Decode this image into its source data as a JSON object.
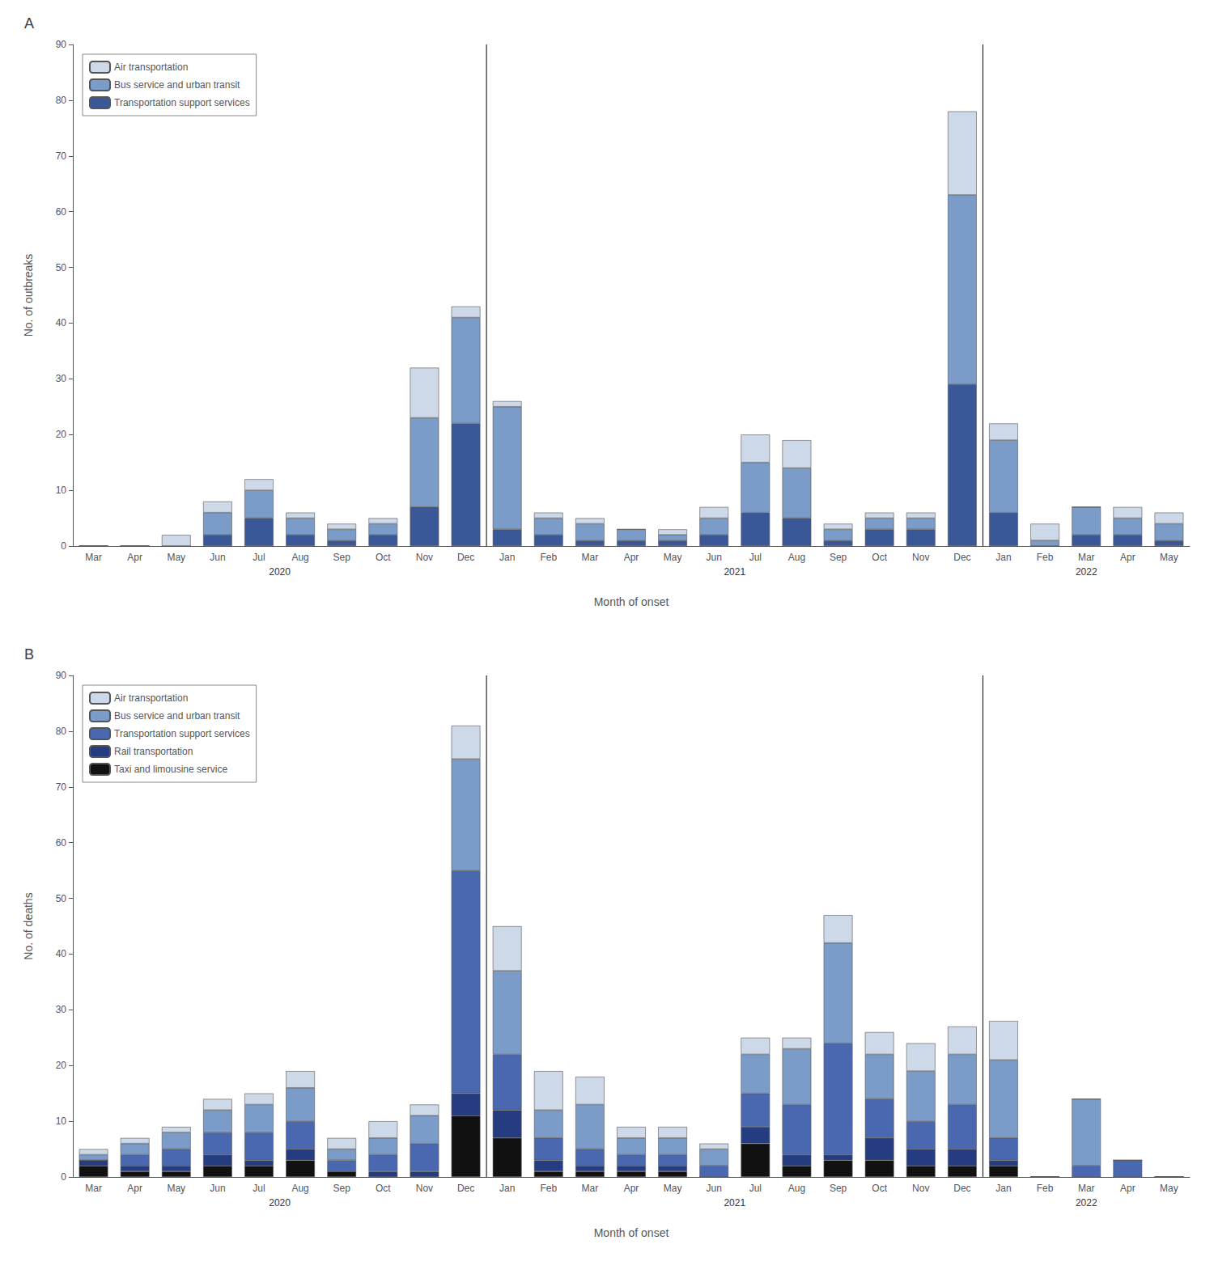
{
  "chart_data": [
    {
      "type": "bar",
      "title": "A",
      "ylabel": "No. of outbreaks",
      "xlabel": "Month of onset",
      "ylim": [
        0,
        90
      ],
      "yticks": [
        0,
        10,
        20,
        30,
        40,
        50,
        60,
        70,
        80,
        90
      ],
      "grid": false,
      "stacked": true,
      "legend": "upper left",
      "categories": [
        "Mar",
        "Apr",
        "May",
        "Jun",
        "Jul",
        "Aug",
        "Sep",
        "Oct",
        "Nov",
        "Dec",
        "Jan",
        "Feb",
        "Mar",
        "Apr",
        "May",
        "Jun",
        "Jul",
        "Aug",
        "Sep",
        "Oct",
        "Nov",
        "Dec",
        "Jan",
        "Feb",
        "Mar",
        "Apr",
        "May"
      ],
      "annotations": [
        {
          "text": "2020",
          "start": 0,
          "end": 9
        },
        {
          "text": "2021",
          "start": 10,
          "end": 21
        },
        {
          "text": "2022",
          "start": 22,
          "end": 26
        }
      ],
      "series": [
        {
          "name": "Transportation support services",
          "color": "#3a5898",
          "values": [
            0,
            0,
            0,
            2,
            5,
            2,
            1,
            2,
            7,
            22,
            3,
            2,
            1,
            1,
            1,
            2,
            6,
            5,
            1,
            3,
            3,
            29,
            6,
            0,
            2,
            2,
            1
          ]
        },
        {
          "name": "Bus service and urban transit",
          "color": "#7b9bc8",
          "values": [
            0,
            0,
            0,
            4,
            5,
            3,
            2,
            2,
            16,
            19,
            22,
            3,
            3,
            2,
            1,
            3,
            9,
            9,
            2,
            2,
            2,
            34,
            13,
            1,
            5,
            3,
            3
          ]
        },
        {
          "name": "Air transportation",
          "color": "#cdd8e8",
          "values": [
            0,
            0,
            2,
            2,
            2,
            1,
            1,
            1,
            9,
            2,
            1,
            1,
            1,
            0,
            1,
            2,
            5,
            5,
            1,
            1,
            1,
            15,
            3,
            3,
            0,
            2,
            2
          ]
        }
      ]
    },
    {
      "type": "bar",
      "title": "B",
      "ylabel": "No. of deaths",
      "xlabel": "Month of onset",
      "ylim": [
        0,
        90
      ],
      "yticks": [
        0,
        10,
        20,
        30,
        40,
        50,
        60,
        70,
        80,
        90
      ],
      "grid": false,
      "stacked": true,
      "legend": "upper left",
      "categories": [
        "Mar",
        "Apr",
        "May",
        "Jun",
        "Jul",
        "Aug",
        "Sep",
        "Oct",
        "Nov",
        "Dec",
        "Jan",
        "Feb",
        "Mar",
        "Apr",
        "May",
        "Jun",
        "Jul",
        "Aug",
        "Sep",
        "Oct",
        "Nov",
        "Dec",
        "Jan",
        "Feb",
        "Mar",
        "Apr",
        "May"
      ],
      "annotations": [
        {
          "text": "2020",
          "start": 0,
          "end": 9
        },
        {
          "text": "2021",
          "start": 10,
          "end": 21
        },
        {
          "text": "2022",
          "start": 22,
          "end": 26
        }
      ],
      "series": [
        {
          "name": "Taxi and limousine service",
          "color": "#111111",
          "values": [
            2,
            1,
            1,
            2,
            2,
            3,
            1,
            0,
            0,
            11,
            7,
            1,
            1,
            1,
            1,
            0,
            6,
            2,
            3,
            3,
            2,
            2,
            2,
            0,
            0,
            0,
            0
          ]
        },
        {
          "name": "Rail transportation",
          "color": "#253d80",
          "values": [
            1,
            1,
            1,
            2,
            1,
            2,
            0,
            1,
            1,
            4,
            5,
            2,
            1,
            1,
            1,
            0,
            3,
            2,
            1,
            4,
            3,
            3,
            1,
            0,
            0,
            0,
            0
          ]
        },
        {
          "name": "Transportation support services",
          "color": "#4a68b0",
          "values": [
            0,
            2,
            3,
            4,
            5,
            5,
            2,
            3,
            5,
            40,
            10,
            4,
            3,
            2,
            2,
            2,
            6,
            9,
            20,
            7,
            5,
            8,
            4,
            0,
            2,
            3,
            0
          ]
        },
        {
          "name": "Bus service and urban transit",
          "color": "#7b9bc8",
          "values": [
            1,
            2,
            3,
            4,
            5,
            6,
            2,
            3,
            5,
            20,
            15,
            5,
            8,
            3,
            3,
            3,
            7,
            10,
            18,
            8,
            9,
            9,
            14,
            0,
            12,
            0,
            0
          ]
        },
        {
          "name": "Air transportation",
          "color": "#cdd8e8",
          "values": [
            1,
            1,
            1,
            2,
            2,
            3,
            2,
            3,
            2,
            6,
            8,
            7,
            5,
            2,
            2,
            1,
            3,
            2,
            5,
            4,
            5,
            5,
            7,
            0,
            0,
            0,
            0
          ]
        }
      ]
    }
  ]
}
